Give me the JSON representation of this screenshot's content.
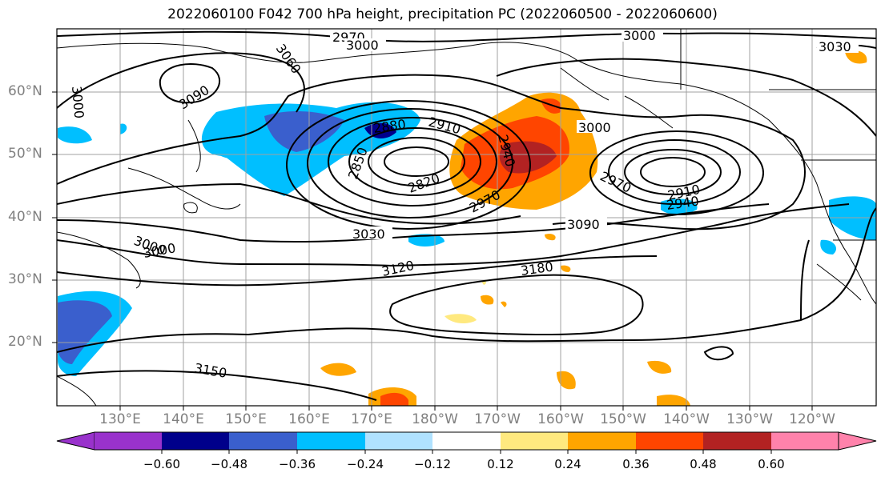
{
  "title": "2022060100 F042 700 hPa height, precipitation PC (2022060500 - 2022060600)",
  "map": {
    "lat_labels": [
      "60°N",
      "50°N",
      "40°N",
      "30°N",
      "20°N"
    ],
    "lon_labels": [
      "130°E",
      "140°E",
      "150°E",
      "160°E",
      "170°E",
      "180°W",
      "170°W",
      "160°W",
      "150°W",
      "140°W",
      "130°W",
      "120°W"
    ],
    "contour_labels": [
      "2970",
      "3000",
      "3000",
      "3060",
      "3030",
      "3090",
      "3000",
      "2880",
      "2910",
      "3000",
      "2850",
      "2940",
      "2820",
      "2970",
      "2970",
      "2910",
      "2940",
      "3030",
      "3090",
      "3000",
      "3000",
      "3120",
      "3180",
      "3150"
    ],
    "colors": {
      "land_outline": "#000000",
      "grid": "#a0a0a0",
      "contour": "#000000"
    }
  },
  "colorbar": {
    "ticks": [
      "−0.60",
      "−0.48",
      "−0.36",
      "−0.24",
      "−0.12",
      "0.12",
      "0.24",
      "0.36",
      "0.48",
      "0.60"
    ],
    "colors": [
      "#9932cc",
      "#00008b",
      "#3a5fcd",
      "#00bfff",
      "#b0e2ff",
      "#ffffff",
      "#ffe97f",
      "#ffa500",
      "#ff4500",
      "#b22222",
      "#ff82ab"
    ]
  }
}
